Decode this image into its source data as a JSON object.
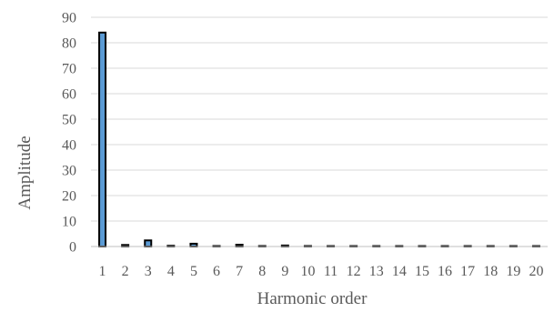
{
  "chart_data": {
    "type": "bar",
    "categories": [
      "1",
      "2",
      "3",
      "4",
      "5",
      "6",
      "7",
      "8",
      "9",
      "10",
      "11",
      "12",
      "13",
      "14",
      "15",
      "16",
      "17",
      "18",
      "19",
      "20"
    ],
    "values": [
      84,
      0.6,
      2.4,
      0.3,
      1.1,
      0.2,
      0.7,
      0.2,
      0.4,
      0.2,
      0.1,
      0.1,
      0.1,
      0.1,
      0.1,
      0.1,
      0.1,
      0.1,
      0.1,
      0.1
    ],
    "title": "",
    "xlabel": "Harmonic order",
    "ylabel": "Amplitude",
    "ylim": [
      0,
      90
    ],
    "yticks": [
      0,
      10,
      20,
      30,
      40,
      50,
      60,
      70,
      80,
      90
    ],
    "grid": true,
    "legend": "none",
    "bar_color": "#5b9bd5",
    "bar_edge_color": "#000000"
  }
}
